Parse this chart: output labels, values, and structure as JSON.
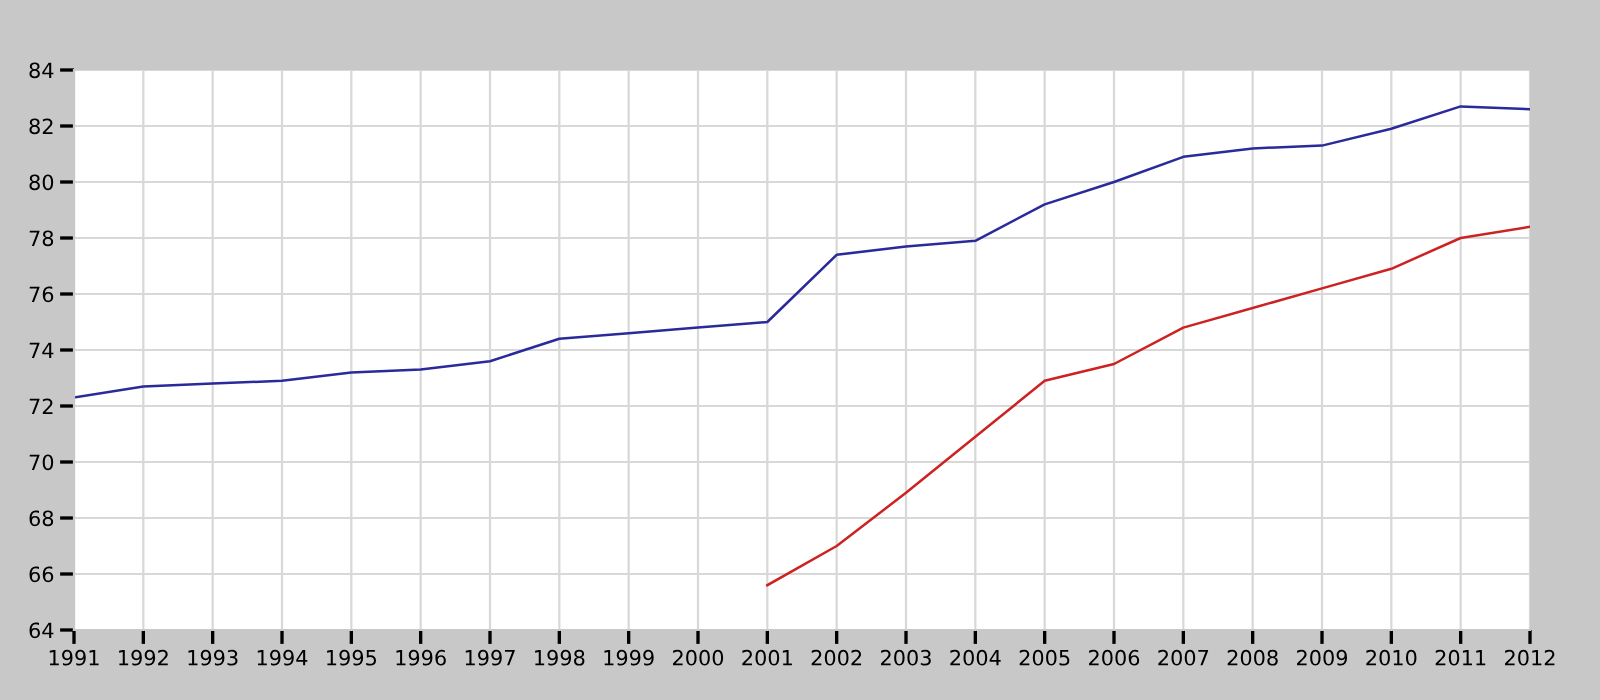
{
  "chart_data": {
    "type": "line",
    "x": [
      1991,
      1992,
      1993,
      1994,
      1995,
      1996,
      1997,
      1998,
      1999,
      2000,
      2001,
      2002,
      2003,
      2004,
      2005,
      2006,
      2007,
      2008,
      2009,
      2010,
      2011,
      2012
    ],
    "series": [
      {
        "color": "#2a2a9a",
        "values": [
          72.3,
          72.7,
          72.8,
          72.9,
          73.2,
          73.3,
          73.6,
          74.4,
          74.6,
          74.8,
          75.0,
          77.4,
          77.7,
          77.9,
          79.2,
          80.0,
          80.9,
          81.2,
          81.3,
          81.9,
          82.7,
          82.6
        ]
      },
      {
        "color": "#cc2222",
        "values": [
          null,
          null,
          null,
          null,
          null,
          null,
          null,
          null,
          null,
          null,
          65.6,
          67.0,
          68.9,
          70.9,
          72.9,
          73.5,
          74.8,
          75.5,
          76.2,
          76.9,
          78.0,
          78.4
        ]
      }
    ],
    "xlim": [
      1991,
      2012
    ],
    "xticks": [
      1991,
      1992,
      1993,
      1994,
      1995,
      1996,
      1997,
      1998,
      1999,
      2000,
      2001,
      2002,
      2003,
      2004,
      2005,
      2006,
      2007,
      2008,
      2009,
      2010,
      2011,
      2012
    ],
    "ylim": [
      64,
      84
    ],
    "yticks": [
      64,
      66,
      68,
      70,
      72,
      74,
      76,
      78,
      80,
      82,
      84
    ],
    "grid": true,
    "marker": "none",
    "line_style": "solid",
    "legend": false
  }
}
